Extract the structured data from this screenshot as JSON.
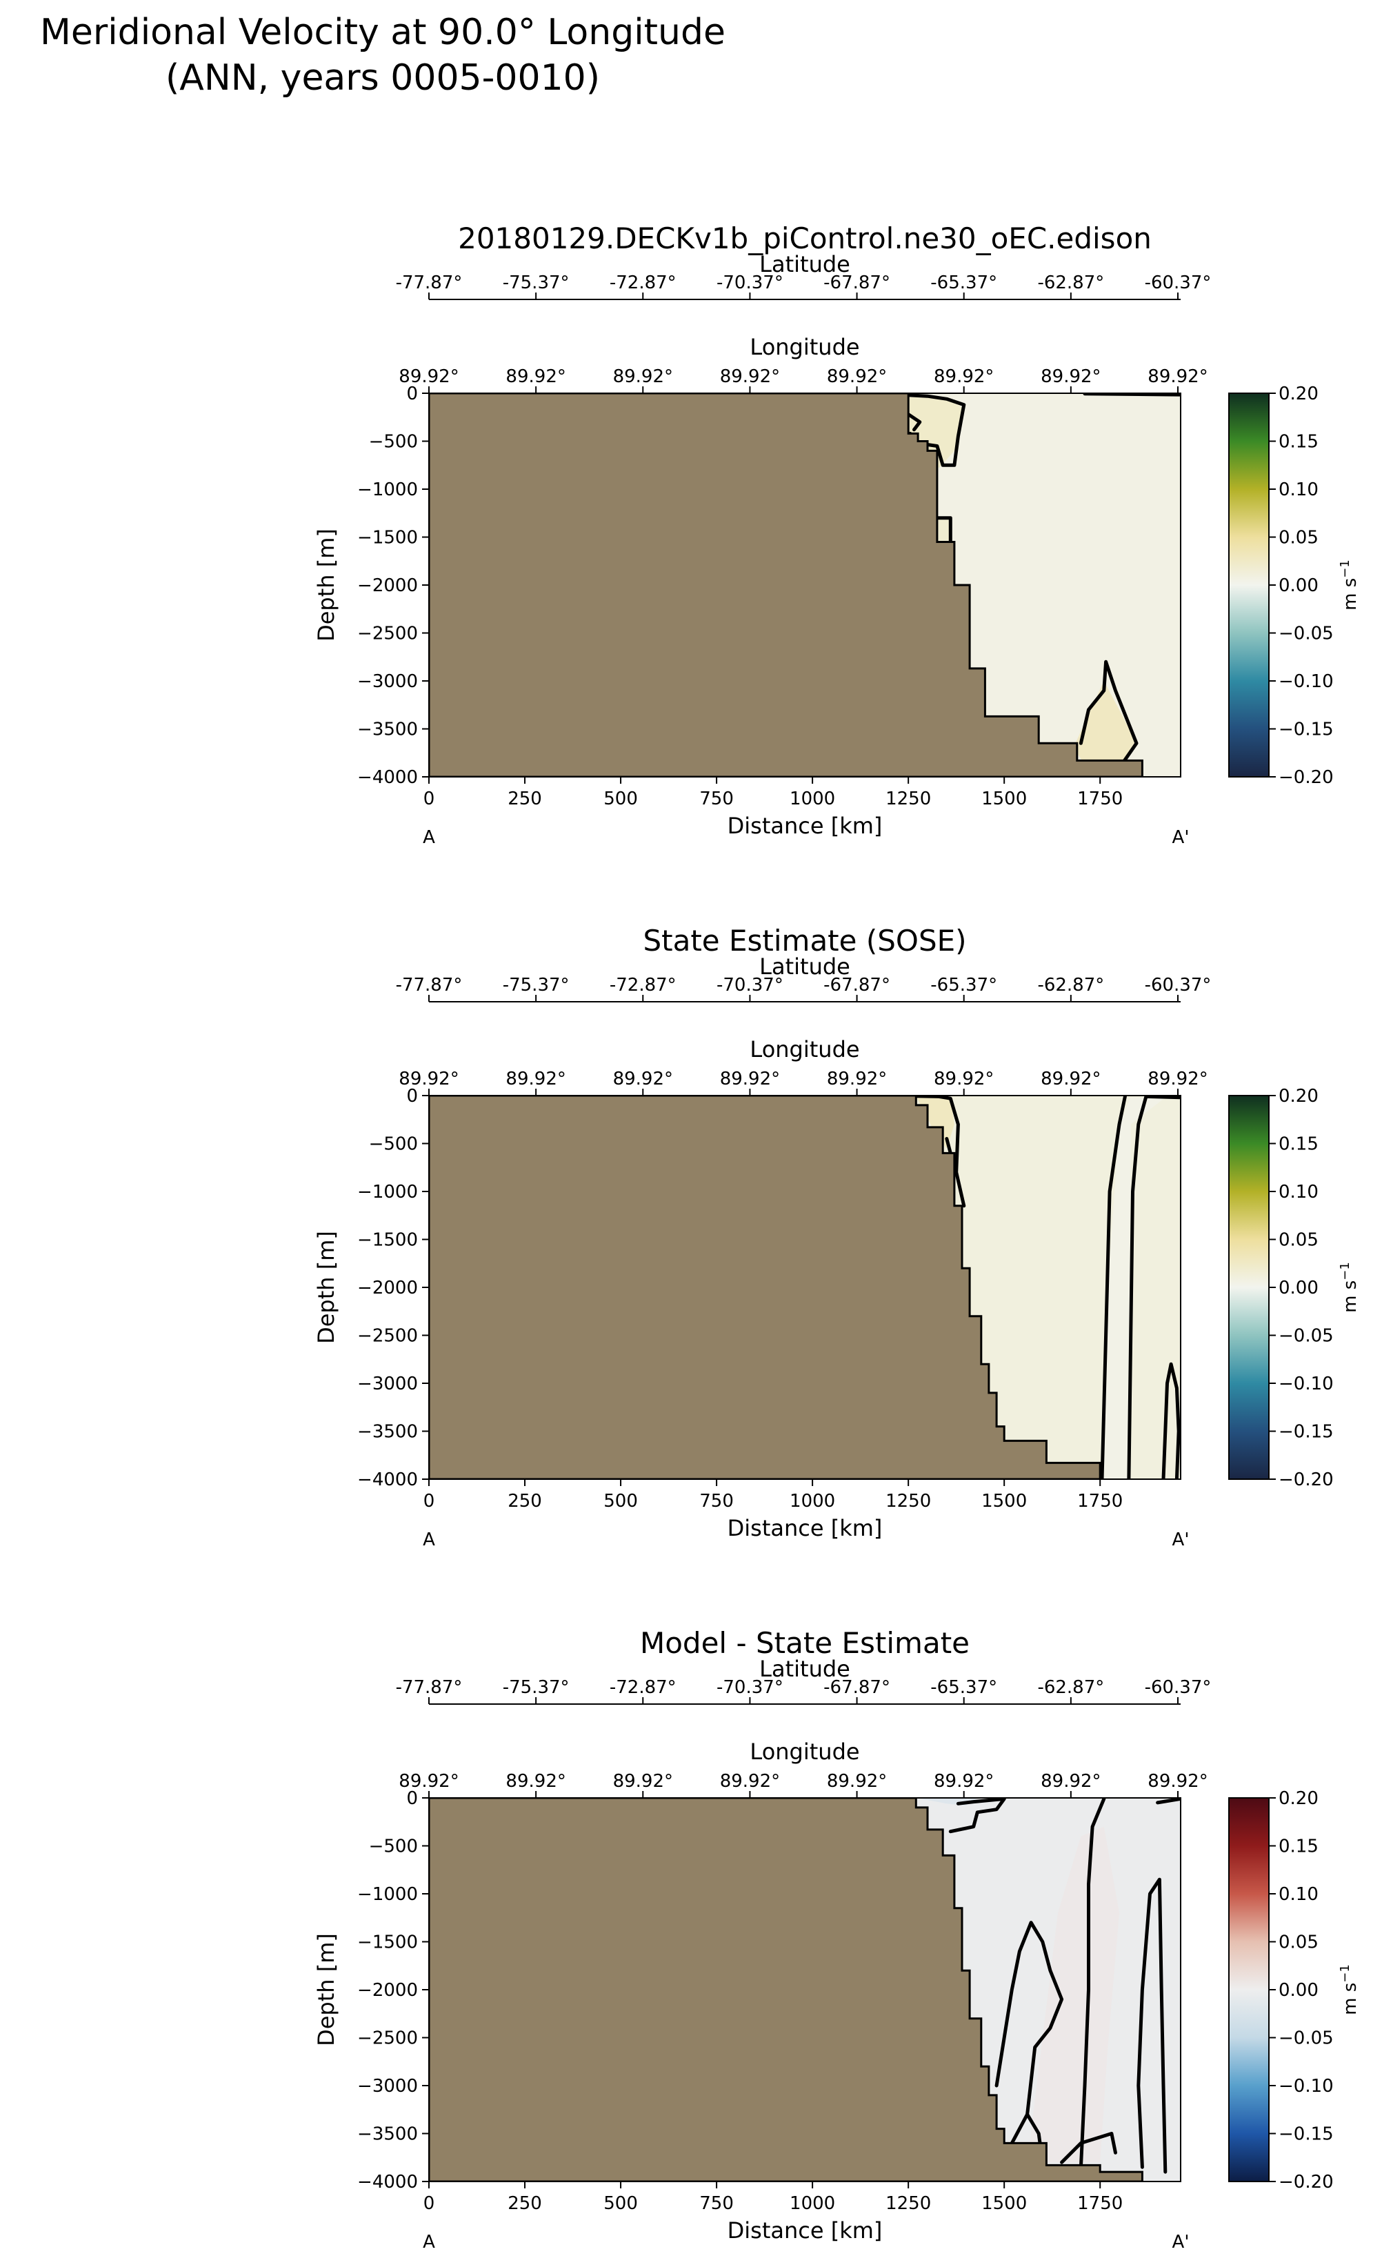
{
  "suptitle": "Meridional Velocity at 90.0° Longitude\n(ANN, years 0005-0010)",
  "colors": {
    "land": "#918165",
    "velocity_cmap": [
      "#1a2644",
      "#24507e",
      "#2f8aa3",
      "#8fc4c0",
      "#f2f4ee",
      "#eedf9e",
      "#b3b127",
      "#3b8a26",
      "#0f2f20"
    ],
    "diff_cmap": [
      "#0c1d45",
      "#1f57a8",
      "#58a0cc",
      "#c4d9e6",
      "#eeeeee",
      "#e6c0b1",
      "#c75849",
      "#8f1b1b",
      "#4d0a14"
    ]
  },
  "chart_data": [
    {
      "type": "heatmap",
      "title": "20180129.DECKv1b_piControl.ne30_oEC.edison",
      "xlabel": "Distance [km]",
      "ylabel": "Depth [m]",
      "xlim": [
        0,
        1960
      ],
      "ylim": [
        -4000,
        0
      ],
      "xticks": [
        0,
        250,
        500,
        750,
        1000,
        1250,
        1500,
        1750
      ],
      "yticks": [
        0,
        -500,
        -1000,
        -1500,
        -2000,
        -2500,
        -3000,
        -3500,
        -4000
      ],
      "section_end_labels": [
        "A",
        "A'"
      ],
      "latitude_axis": {
        "label": "Latitude",
        "ticks": [
          "-77.87°",
          "-75.37°",
          "-72.87°",
          "-70.37°",
          "-67.87°",
          "-65.37°",
          "-62.87°",
          "-60.37°"
        ]
      },
      "longitude_axis": {
        "label": "Longitude",
        "ticks": [
          "89.92°",
          "89.92°",
          "89.92°",
          "89.92°",
          "89.92°",
          "89.92°",
          "89.92°",
          "89.92°"
        ]
      },
      "colorbar": {
        "label": "m s",
        "label_sup": "−1",
        "ticks": [
          "0.20",
          "0.15",
          "0.10",
          "0.05",
          "0.00",
          "−0.05",
          "−0.10",
          "−0.15",
          "−0.20"
        ],
        "vmin": -0.2,
        "vmax": 0.2,
        "cmap": "velocity"
      },
      "ocean_value": 0.006,
      "patches": [
        {
          "value": 0.025,
          "pts": [
            [
              1250,
              -40
            ],
            [
              1360,
              -60
            ],
            [
              1390,
              -150
            ],
            [
              1370,
              -600
            ],
            [
              1330,
              -780
            ],
            [
              1290,
              -600
            ],
            [
              1250,
              -400
            ]
          ]
        },
        {
          "value": 0.02,
          "pts": [
            [
              1325,
              -1300
            ],
            [
              1360,
              -1300
            ],
            [
              1365,
              -1550
            ],
            [
              1325,
              -1550
            ]
          ]
        },
        {
          "value": 0.03,
          "pts": [
            [
              1680,
              -3700
            ],
            [
              1760,
              -3000
            ],
            [
              1800,
              -3300
            ],
            [
              1845,
              -3650
            ],
            [
              1800,
              -3900
            ],
            [
              1730,
              -3980
            ]
          ]
        }
      ],
      "contours": [
        [
          [
            1250,
            -20
          ],
          [
            1300,
            -30
          ],
          [
            1350,
            -60
          ],
          [
            1395,
            -120
          ],
          [
            1380,
            -450
          ],
          [
            1370,
            -750
          ],
          [
            1340,
            -750
          ],
          [
            1325,
            -550
          ],
          [
            1255,
            -510
          ],
          [
            1255,
            -420
          ]
        ],
        [
          [
            1250,
            -220
          ],
          [
            1280,
            -300
          ],
          [
            1265,
            -380
          ]
        ],
        [
          [
            1325,
            -1300
          ],
          [
            1360,
            -1300
          ],
          [
            1360,
            -1550
          ]
        ],
        [
          [
            1380,
            -3350
          ],
          [
            1430,
            -3360
          ]
        ],
        [
          [
            1700,
            -3650
          ],
          [
            1720,
            -3300
          ],
          [
            1760,
            -3100
          ],
          [
            1765,
            -2800
          ],
          [
            1790,
            -3100
          ],
          [
            1810,
            -3300
          ],
          [
            1845,
            -3650
          ],
          [
            1810,
            -3850
          ],
          [
            1730,
            -3950
          ]
        ],
        [
          [
            1710,
            -5
          ],
          [
            1960,
            -15
          ]
        ]
      ],
      "bathymetry": [
        [
          1250,
          0
        ],
        [
          1250,
          -420
        ],
        [
          1275,
          -420
        ],
        [
          1275,
          -500
        ],
        [
          1300,
          -500
        ],
        [
          1300,
          -600
        ],
        [
          1325,
          -600
        ],
        [
          1325,
          -1300
        ],
        [
          1325,
          -1550
        ],
        [
          1370,
          -1550
        ],
        [
          1370,
          -2000
        ],
        [
          1410,
          -2000
        ],
        [
          1410,
          -2870
        ],
        [
          1450,
          -2870
        ],
        [
          1450,
          -3370
        ],
        [
          1590,
          -3370
        ],
        [
          1590,
          -3650
        ],
        [
          1690,
          -3650
        ],
        [
          1690,
          -3830
        ],
        [
          1860,
          -3830
        ],
        [
          1860,
          -4000
        ],
        [
          0,
          -4000
        ],
        [
          0,
          0
        ]
      ]
    },
    {
      "type": "heatmap",
      "title": "State Estimate (SOSE)",
      "xlabel": "Distance [km]",
      "ylabel": "Depth [m]",
      "xlim": [
        0,
        1960
      ],
      "ylim": [
        -4000,
        0
      ],
      "xticks": [
        0,
        250,
        500,
        750,
        1000,
        1250,
        1500,
        1750
      ],
      "yticks": [
        0,
        -500,
        -1000,
        -1500,
        -2000,
        -2500,
        -3000,
        -3500,
        -4000
      ],
      "section_end_labels": [
        "A",
        "A'"
      ],
      "latitude_axis": {
        "label": "Latitude",
        "ticks": [
          "-77.87°",
          "-75.37°",
          "-72.87°",
          "-70.37°",
          "-67.87°",
          "-65.37°",
          "-62.87°",
          "-60.37°"
        ]
      },
      "longitude_axis": {
        "label": "Longitude",
        "ticks": [
          "89.92°",
          "89.92°",
          "89.92°",
          "89.92°",
          "89.92°",
          "89.92°",
          "89.92°",
          "89.92°"
        ]
      },
      "colorbar": {
        "label": "m s",
        "label_sup": "−1",
        "ticks": [
          "0.20",
          "0.15",
          "0.10",
          "0.05",
          "0.00",
          "−0.05",
          "−0.10",
          "−0.15",
          "−0.20"
        ],
        "vmin": -0.2,
        "vmax": 0.2,
        "cmap": "velocity"
      },
      "ocean_value": 0.01,
      "patches": [
        {
          "value": 0.03,
          "pts": [
            [
              1270,
              -10
            ],
            [
              1360,
              -20
            ],
            [
              1370,
              -300
            ],
            [
              1350,
              -550
            ],
            [
              1320,
              -400
            ],
            [
              1290,
              -150
            ]
          ]
        },
        {
          "value": 0.004,
          "pts": [
            [
              1755,
              -4000
            ],
            [
              1770,
              -2000
            ],
            [
              1800,
              -300
            ],
            [
              1830,
              -20
            ],
            [
              1920,
              -20
            ],
            [
              1830,
              -300
            ],
            [
              1825,
              -4000
            ]
          ]
        }
      ],
      "contours": [
        [
          [
            1270,
            -5
          ],
          [
            1330,
            -10
          ],
          [
            1360,
            -30
          ],
          [
            1380,
            -300
          ],
          [
            1375,
            -800
          ],
          [
            1395,
            -1150
          ]
        ],
        [
          [
            1350,
            -450
          ],
          [
            1360,
            -600
          ]
        ],
        [
          [
            1755,
            -4000
          ],
          [
            1765,
            -2500
          ],
          [
            1775,
            -1000
          ],
          [
            1800,
            -300
          ],
          [
            1815,
            -10
          ]
        ],
        [
          [
            1825,
            -4000
          ],
          [
            1830,
            -2500
          ],
          [
            1835,
            -1000
          ],
          [
            1850,
            -300
          ],
          [
            1870,
            -10
          ]
        ],
        [
          [
            1870,
            -10
          ],
          [
            1960,
            -20
          ]
        ],
        [
          [
            1915,
            -4000
          ],
          [
            1920,
            -3500
          ],
          [
            1925,
            -3000
          ],
          [
            1935,
            -2800
          ],
          [
            1950,
            -3050
          ],
          [
            1955,
            -3500
          ],
          [
            1950,
            -4000
          ]
        ]
      ],
      "bathymetry": [
        [
          1270,
          0
        ],
        [
          1270,
          -100
        ],
        [
          1300,
          -100
        ],
        [
          1300,
          -330
        ],
        [
          1340,
          -330
        ],
        [
          1340,
          -600
        ],
        [
          1370,
          -600
        ],
        [
          1370,
          -1150
        ],
        [
          1390,
          -1150
        ],
        [
          1390,
          -1800
        ],
        [
          1410,
          -1800
        ],
        [
          1410,
          -2300
        ],
        [
          1440,
          -2300
        ],
        [
          1440,
          -2800
        ],
        [
          1460,
          -2800
        ],
        [
          1460,
          -3100
        ],
        [
          1480,
          -3100
        ],
        [
          1480,
          -3450
        ],
        [
          1500,
          -3450
        ],
        [
          1500,
          -3600
        ],
        [
          1610,
          -3600
        ],
        [
          1610,
          -3830
        ],
        [
          1750,
          -3830
        ],
        [
          1750,
          -4000
        ],
        [
          0,
          -4000
        ],
        [
          0,
          0
        ]
      ]
    },
    {
      "type": "heatmap",
      "title": "Model - State Estimate",
      "xlabel": "Distance [km]",
      "ylabel": "Depth [m]",
      "xlim": [
        0,
        1960
      ],
      "ylim": [
        -4000,
        0
      ],
      "xticks": [
        0,
        250,
        500,
        750,
        1000,
        1250,
        1500,
        1750
      ],
      "yticks": [
        0,
        -500,
        -1000,
        -1500,
        -2000,
        -2500,
        -3000,
        -3500,
        -4000
      ],
      "section_end_labels": [
        "A",
        "A'"
      ],
      "latitude_axis": {
        "label": "Latitude",
        "ticks": [
          "-77.87°",
          "-75.37°",
          "-72.87°",
          "-70.37°",
          "-67.87°",
          "-65.37°",
          "-62.87°",
          "-60.37°"
        ]
      },
      "longitude_axis": {
        "label": "Longitude",
        "ticks": [
          "89.92°",
          "89.92°",
          "89.92°",
          "89.92°",
          "89.92°",
          "89.92°",
          "89.92°",
          "89.92°"
        ]
      },
      "colorbar": {
        "label": "m s",
        "label_sup": "−1",
        "ticks": [
          "0.20",
          "0.15",
          "0.10",
          "0.05",
          "0.00",
          "−0.05",
          "−0.10",
          "−0.15",
          "−0.20"
        ],
        "vmin": -0.2,
        "vmax": 0.2,
        "cmap": "diff"
      },
      "ocean_value": -0.004,
      "patches": [
        {
          "value": 0.006,
          "pts": [
            [
              1560,
              -3800
            ],
            [
              1600,
              -2500
            ],
            [
              1640,
              -1200
            ],
            [
              1700,
              -400
            ],
            [
              1760,
              -300
            ],
            [
              1800,
              -1200
            ],
            [
              1770,
              -2600
            ],
            [
              1750,
              -3800
            ]
          ]
        },
        {
          "value": -0.02,
          "pts": [
            [
              1270,
              0
            ],
            [
              1430,
              0
            ],
            [
              1400,
              -80
            ],
            [
              1350,
              -60
            ]
          ]
        }
      ],
      "contours": [
        [
          [
            1360,
            -350
          ],
          [
            1420,
            -300
          ],
          [
            1430,
            -150
          ],
          [
            1480,
            -120
          ],
          [
            1500,
            -10
          ],
          [
            1420,
            -40
          ],
          [
            1380,
            -60
          ]
        ],
        [
          [
            1480,
            -3000
          ],
          [
            1500,
            -2500
          ],
          [
            1520,
            -2000
          ],
          [
            1540,
            -1600
          ],
          [
            1570,
            -1300
          ],
          [
            1600,
            -1500
          ],
          [
            1620,
            -1800
          ],
          [
            1650,
            -2100
          ],
          [
            1620,
            -2400
          ],
          [
            1580,
            -2600
          ],
          [
            1560,
            -3300
          ],
          [
            1520,
            -3600
          ],
          [
            1500,
            -3800
          ]
        ],
        [
          [
            1600,
            -3800
          ],
          [
            1590,
            -3500
          ],
          [
            1560,
            -3300
          ]
        ],
        [
          [
            1700,
            -3850
          ],
          [
            1710,
            -3000
          ],
          [
            1720,
            -2000
          ],
          [
            1720,
            -900
          ],
          [
            1730,
            -300
          ],
          [
            1760,
            -10
          ]
        ],
        [
          [
            1860,
            -3850
          ],
          [
            1850,
            -3000
          ],
          [
            1860,
            -2000
          ],
          [
            1880,
            -1000
          ],
          [
            1905,
            -850
          ],
          [
            1910,
            -2000
          ],
          [
            1915,
            -3000
          ],
          [
            1920,
            -3900
          ]
        ],
        [
          [
            1790,
            -3700
          ],
          [
            1780,
            -3500
          ],
          [
            1700,
            -3600
          ],
          [
            1650,
            -3800
          ]
        ],
        [
          [
            1900,
            -50
          ],
          [
            1960,
            -10
          ]
        ]
      ],
      "bathymetry": [
        [
          1270,
          0
        ],
        [
          1270,
          -100
        ],
        [
          1300,
          -100
        ],
        [
          1300,
          -330
        ],
        [
          1340,
          -330
        ],
        [
          1340,
          -600
        ],
        [
          1370,
          -600
        ],
        [
          1370,
          -1150
        ],
        [
          1390,
          -1150
        ],
        [
          1390,
          -1800
        ],
        [
          1410,
          -1800
        ],
        [
          1410,
          -2300
        ],
        [
          1440,
          -2300
        ],
        [
          1440,
          -2800
        ],
        [
          1460,
          -2800
        ],
        [
          1460,
          -3100
        ],
        [
          1480,
          -3100
        ],
        [
          1480,
          -3450
        ],
        [
          1500,
          -3450
        ],
        [
          1500,
          -3600
        ],
        [
          1610,
          -3600
        ],
        [
          1610,
          -3830
        ],
        [
          1750,
          -3830
        ],
        [
          1750,
          -3900
        ],
        [
          1860,
          -3900
        ],
        [
          1860,
          -4000
        ],
        [
          0,
          -4000
        ],
        [
          0,
          0
        ]
      ]
    }
  ]
}
